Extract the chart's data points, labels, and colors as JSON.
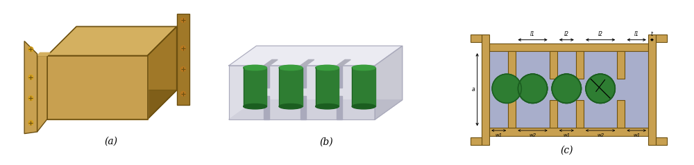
{
  "fig_width": 10.0,
  "fig_height": 2.39,
  "bg_color": "#ffffff",
  "gold_color": "#C8A050",
  "gold_top": "#D4B060",
  "gold_side": "#A07828",
  "gold_dark": "#6B4F10",
  "gold_front": "#C8A050",
  "green_body": "#2E7D32",
  "green_top": "#3A9E3E",
  "green_dark": "#1B5E20",
  "gray_panel": "#D8D8E2",
  "gray_dark": "#AAAABC",
  "gray_top": "#E8E8F0",
  "cavity_color": "#A8AECB",
  "panel_a_label": "(a)",
  "panel_b_label": "(b)",
  "panel_c_label": "(c)"
}
